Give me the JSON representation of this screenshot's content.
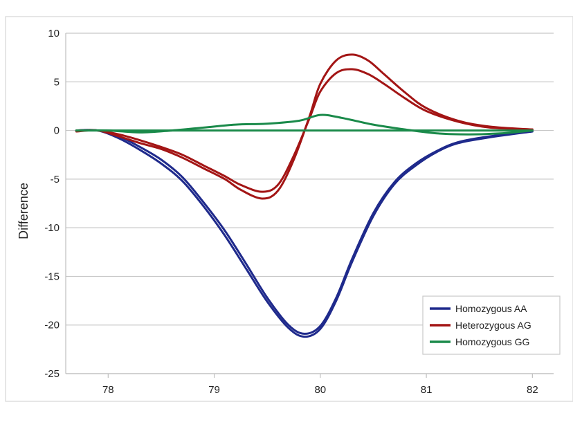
{
  "chart_data": {
    "type": "line",
    "title": "",
    "xlabel": "",
    "ylabel": "Difference",
    "xlim": [
      77.6,
      82.2
    ],
    "ylim": [
      -25,
      10
    ],
    "x_ticks": [
      78,
      79,
      80,
      81,
      82
    ],
    "y_ticks": [
      10,
      5,
      0,
      -5,
      -10,
      -15,
      -20,
      -25
    ],
    "grid": "horizontal",
    "legend_position": "bottom-right",
    "legend": [
      "Homozygous AA",
      "Heterozygous AG",
      "Homozygous GG"
    ],
    "series": [
      {
        "name": "Homozygous AA",
        "group": 0,
        "color": "#1f2a8c",
        "x": [
          77.7,
          77.9,
          78.1,
          78.3,
          78.5,
          78.7,
          78.9,
          79.1,
          79.3,
          79.5,
          79.7,
          79.85,
          80.0,
          80.15,
          80.3,
          80.5,
          80.7,
          80.9,
          81.1,
          81.3,
          81.6,
          82.0
        ],
        "y": [
          0,
          0,
          -0.8,
          -2.0,
          -3.4,
          -5.2,
          -7.8,
          -10.8,
          -14.2,
          -17.6,
          -20.3,
          -21.2,
          -20.4,
          -17.5,
          -13.5,
          -8.8,
          -5.5,
          -3.6,
          -2.2,
          -1.3,
          -0.7,
          -0.1
        ]
      },
      {
        "name": "",
        "group": 0,
        "color": "#1f2a8c",
        "x": [
          77.7,
          77.9,
          78.1,
          78.3,
          78.5,
          78.7,
          78.9,
          79.1,
          79.3,
          79.5,
          79.7,
          79.85,
          80.0,
          80.15,
          80.3,
          80.5,
          80.7,
          80.9,
          81.1,
          81.3,
          81.6,
          82.0
        ],
        "y": [
          0,
          0,
          -0.6,
          -1.7,
          -3.0,
          -4.8,
          -7.4,
          -10.3,
          -13.7,
          -17.2,
          -20.0,
          -20.9,
          -20.1,
          -17.2,
          -13.2,
          -8.5,
          -5.3,
          -3.4,
          -2.1,
          -1.2,
          -0.6,
          -0.1
        ]
      },
      {
        "name": "Heterozygous AG",
        "group": 1,
        "color": "#a31515",
        "x": [
          77.7,
          77.9,
          78.1,
          78.3,
          78.5,
          78.7,
          78.9,
          79.1,
          79.25,
          79.45,
          79.6,
          79.75,
          79.9,
          80.0,
          80.15,
          80.3,
          80.45,
          80.6,
          80.8,
          81.0,
          81.3,
          81.6,
          82.0
        ],
        "y": [
          -0.1,
          0,
          -0.6,
          -1.3,
          -1.9,
          -2.8,
          -3.9,
          -5.0,
          -6.1,
          -7.0,
          -6.2,
          -3.0,
          1.5,
          4.8,
          7.2,
          7.8,
          7.2,
          5.8,
          3.9,
          2.3,
          1.0,
          0.4,
          0.1
        ]
      },
      {
        "name": "",
        "group": 1,
        "color": "#a31515",
        "x": [
          77.7,
          77.9,
          78.1,
          78.3,
          78.5,
          78.7,
          78.9,
          79.1,
          79.25,
          79.45,
          79.6,
          79.75,
          79.9,
          80.0,
          80.15,
          80.3,
          80.45,
          80.6,
          80.8,
          81.0,
          81.3,
          81.6,
          82.0
        ],
        "y": [
          0,
          0,
          -0.4,
          -1.0,
          -1.7,
          -2.5,
          -3.6,
          -4.7,
          -5.6,
          -6.3,
          -5.6,
          -2.6,
          1.3,
          4.0,
          5.9,
          6.3,
          5.8,
          4.8,
          3.3,
          2.0,
          0.9,
          0.3,
          0.1
        ]
      },
      {
        "name": "Homozygous GG",
        "group": 2,
        "color": "#1a8a4a",
        "x": [
          77.7,
          78.0,
          78.3,
          78.6,
          78.9,
          79.2,
          79.5,
          79.8,
          80.0,
          80.2,
          80.5,
          80.8,
          81.1,
          81.4,
          81.7,
          82.0
        ],
        "y": [
          0,
          0,
          -0.2,
          0.0,
          0.3,
          0.6,
          0.7,
          1.0,
          1.6,
          1.3,
          0.6,
          0.1,
          -0.3,
          -0.4,
          -0.3,
          0
        ]
      },
      {
        "name": "",
        "group": 2,
        "color": "#1a8a4a",
        "x": [
          77.7,
          78.5,
          79.5,
          80.5,
          81.5,
          82.0
        ],
        "y": [
          0,
          0,
          0,
          0,
          0,
          0
        ]
      }
    ]
  }
}
